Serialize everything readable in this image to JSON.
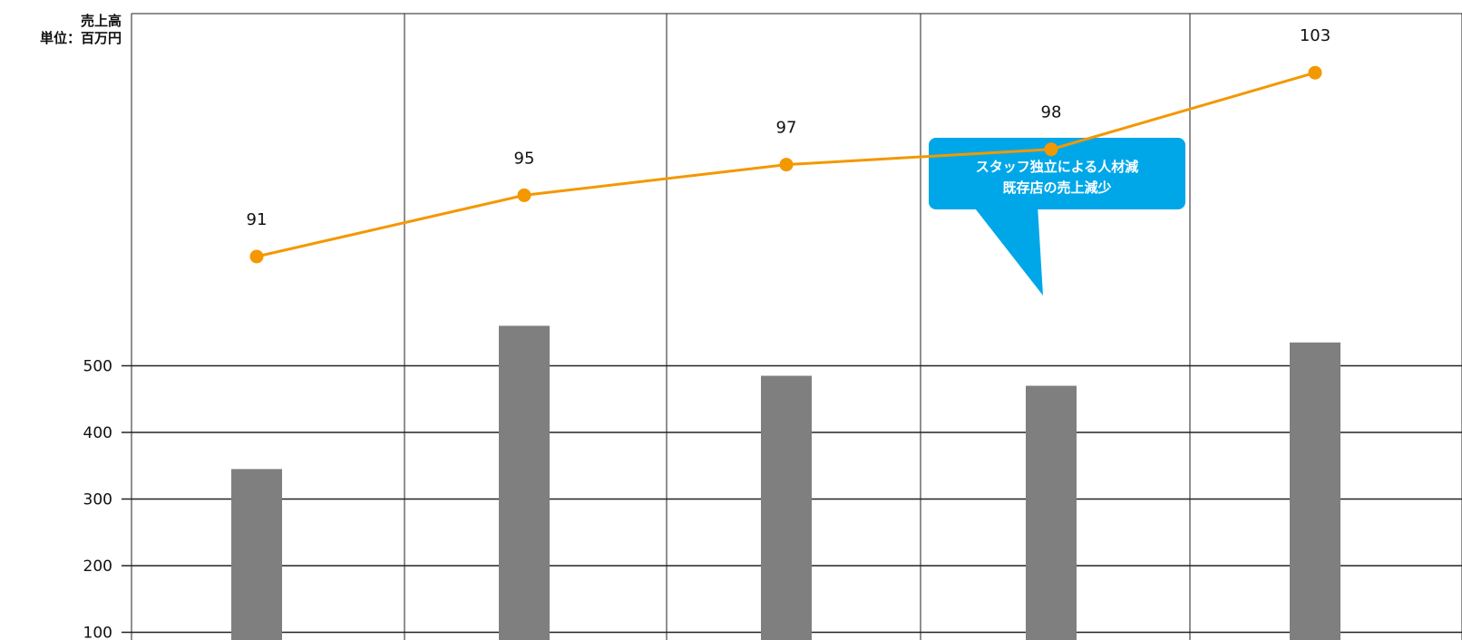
{
  "chart_data": {
    "type": "bar+line",
    "ylabel_line1": "売上高",
    "ylabel_line2": "単位：百万円",
    "y_ticks": [
      100,
      200,
      300,
      400,
      500
    ],
    "ylim": [
      0,
      500
    ],
    "grid": true,
    "bars": {
      "values": [
        345,
        560,
        485,
        470,
        535
      ],
      "color": "#7f7f7f"
    },
    "line": {
      "values": [
        91,
        95,
        97,
        98,
        103
      ],
      "color": "#f39800"
    },
    "annotation": {
      "lines": [
        "スタッフ独立による人材減",
        "既存店の売上減少"
      ],
      "color": "#00a7e8",
      "target_index": 3
    }
  }
}
